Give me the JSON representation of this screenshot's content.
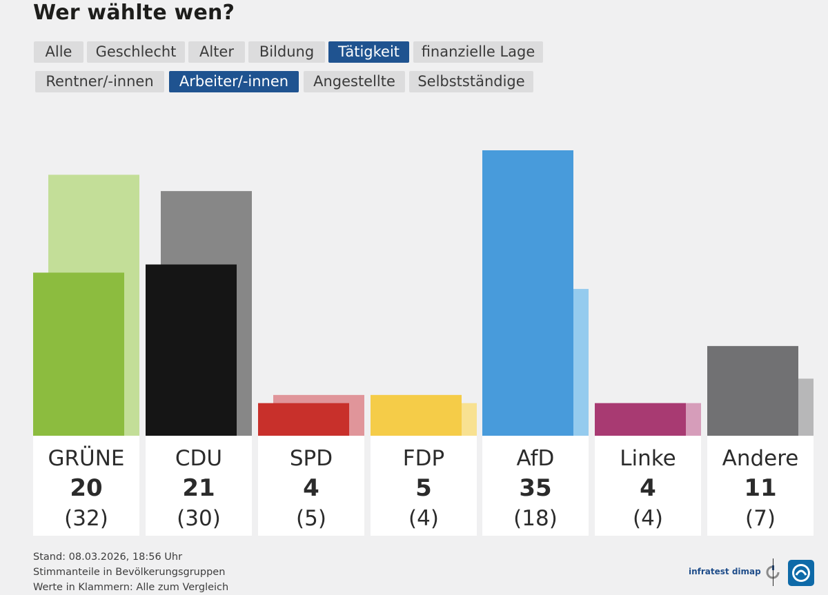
{
  "title": "Wer wählte wen?",
  "tabs_row1": [
    {
      "label": "Alle",
      "active": false
    },
    {
      "label": "Geschlecht",
      "active": false
    },
    {
      "label": "Alter",
      "active": false
    },
    {
      "label": "Bildung",
      "active": false
    },
    {
      "label": "Tätigkeit",
      "active": true
    },
    {
      "label": "finanzielle Lage",
      "active": false
    }
  ],
  "tabs_row2": [
    {
      "label": "Rentner/-innen",
      "active": false
    },
    {
      "label": "Arbeiter/-innen",
      "active": true
    },
    {
      "label": "Angestellte",
      "active": false
    },
    {
      "label": "Selbstständige",
      "active": false
    }
  ],
  "chart_data": {
    "type": "bar",
    "categories": [
      "GRÜNE",
      "CDU",
      "SPD",
      "FDP",
      "AfD",
      "Linke",
      "Andere"
    ],
    "series": [
      {
        "values": [
          20,
          21,
          4,
          5,
          35,
          4,
          11
        ]
      },
      {
        "values": [
          32,
          30,
          5,
          4,
          18,
          4,
          7
        ]
      }
    ],
    "value_labels": [
      "20",
      "21",
      "4",
      "5",
      "35",
      "4",
      "11"
    ],
    "reference_labels": [
      "(32)",
      "(30)",
      "(5)",
      "(4)",
      "(18)",
      "(4)",
      "(7)"
    ],
    "colors": [
      "#8cbc3f",
      "#151515",
      "#c8302b",
      "#f5cc48",
      "#489bdb",
      "#a83a72",
      "#717173"
    ],
    "reference_colors": [
      "#c3de98",
      "#878787",
      "#e0959a",
      "#f8e191",
      "#95cbee",
      "#d69dba",
      "#b7b7b8"
    ],
    "ylim": [
      0,
      35
    ],
    "grid": false,
    "legend": "none"
  },
  "footer": {
    "line1": "Stand: 08.03.2026, 18:56 Uhr",
    "line2": "Stimmanteile in Bevölkerungsgruppen",
    "line3": "Werte in Klammern: Alle zum Vergleich"
  },
  "brand": {
    "name": "infratest dimap",
    "logo_icon": "infratest-dimap-logo-icon",
    "broadcaster_icon": "ard-logo-icon"
  }
}
